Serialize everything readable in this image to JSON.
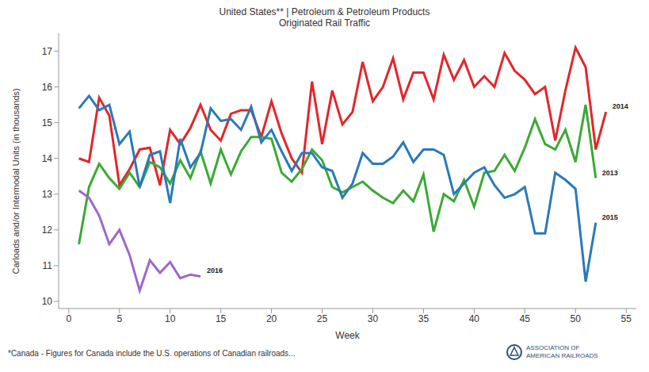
{
  "chart_data": {
    "type": "line",
    "title": "United States** | Petroleum & Petroleum Products",
    "subtitle": "Originated Rail Traffic",
    "x_label": "Week",
    "y_label": "Carloads and/or Intermodal Units (in thousands)",
    "footnote": "*Canada - Figures for Canada include the U.S. operations of Canadian railroads...",
    "logo": [
      "ASSOCIATION OF",
      "AMERICAN RAILROADS"
    ],
    "x": [
      1,
      2,
      3,
      4,
      5,
      6,
      7,
      8,
      9,
      10,
      11,
      12,
      13,
      14,
      15,
      16,
      17,
      18,
      19,
      20,
      21,
      22,
      23,
      24,
      25,
      26,
      27,
      28,
      29,
      30,
      31,
      32,
      33,
      34,
      35,
      36,
      37,
      38,
      39,
      40,
      41,
      42,
      43,
      44,
      45,
      46,
      47,
      48,
      49,
      50,
      51,
      52,
      53
    ],
    "series": [
      {
        "name": "2014",
        "color": "#e3262b",
        "values": [
          14.0,
          13.9,
          15.7,
          15.2,
          13.25,
          13.7,
          14.25,
          14.3,
          13.25,
          14.8,
          14.4,
          14.85,
          15.5,
          14.8,
          14.5,
          15.25,
          15.35,
          15.35,
          14.6,
          15.6,
          14.7,
          14.0,
          13.6,
          16.15,
          14.4,
          15.9,
          14.95,
          15.3,
          16.7,
          15.6,
          16.0,
          16.8,
          15.65,
          16.4,
          16.4,
          15.65,
          16.9,
          16.2,
          16.75,
          16.0,
          16.3,
          16.0,
          16.95,
          16.45,
          16.2,
          15.8,
          16.0,
          14.5,
          15.9,
          17.1,
          16.55,
          14.25,
          15.3
        ]
      },
      {
        "name": "2013",
        "color": "#3aaa35",
        "values": [
          11.6,
          13.2,
          13.85,
          13.45,
          13.15,
          13.6,
          13.2,
          13.9,
          13.75,
          13.3,
          13.95,
          13.45,
          14.2,
          13.3,
          14.25,
          13.55,
          14.2,
          14.6,
          14.6,
          14.55,
          13.6,
          13.35,
          13.7,
          14.25,
          13.95,
          13.2,
          13.05,
          13.2,
          13.35,
          13.1,
          12.9,
          12.75,
          13.1,
          12.8,
          13.55,
          11.95,
          13.0,
          12.8,
          13.4,
          12.65,
          13.6,
          13.65,
          14.1,
          13.65,
          14.3,
          15.1,
          14.4,
          14.25,
          14.8,
          13.9,
          15.5,
          13.45,
          null
        ]
      },
      {
        "name": "2015",
        "color": "#2a7ab8",
        "values": [
          15.4,
          15.75,
          15.35,
          15.5,
          14.4,
          14.75,
          13.2,
          14.1,
          14.2,
          12.75,
          14.55,
          13.75,
          14.15,
          15.4,
          15.05,
          15.1,
          14.8,
          15.45,
          14.45,
          14.8,
          14.2,
          13.65,
          14.15,
          14.15,
          13.75,
          13.65,
          12.9,
          13.3,
          14.15,
          13.85,
          13.85,
          14.05,
          14.45,
          13.9,
          14.25,
          14.25,
          14.1,
          13.0,
          13.3,
          13.6,
          13.75,
          13.25,
          12.9,
          13.0,
          13.2,
          11.9,
          11.9,
          13.6,
          13.4,
          13.15,
          10.55,
          12.2,
          null
        ]
      },
      {
        "name": "2016",
        "color": "#a066c8",
        "values": [
          13.1,
          12.9,
          12.4,
          11.6,
          12.0,
          11.3,
          10.3,
          11.15,
          10.8,
          11.1,
          10.65,
          10.75,
          10.7,
          null,
          null,
          null,
          null,
          null,
          null,
          null,
          null,
          null,
          null,
          null,
          null,
          null,
          null,
          null,
          null,
          null,
          null,
          null,
          null,
          null,
          null,
          null,
          null,
          null,
          null,
          null,
          null,
          null,
          null,
          null,
          null,
          null,
          null,
          null,
          null,
          null,
          null,
          null,
          null
        ]
      }
    ],
    "xlim": [
      -1,
      56
    ],
    "xticks": [
      0,
      5,
      10,
      15,
      20,
      25,
      30,
      35,
      40,
      45,
      50,
      55
    ],
    "ylim": [
      9.8,
      17.5
    ],
    "yticks": [
      10,
      11,
      12,
      13,
      14,
      15,
      16,
      17
    ],
    "grid": false
  }
}
